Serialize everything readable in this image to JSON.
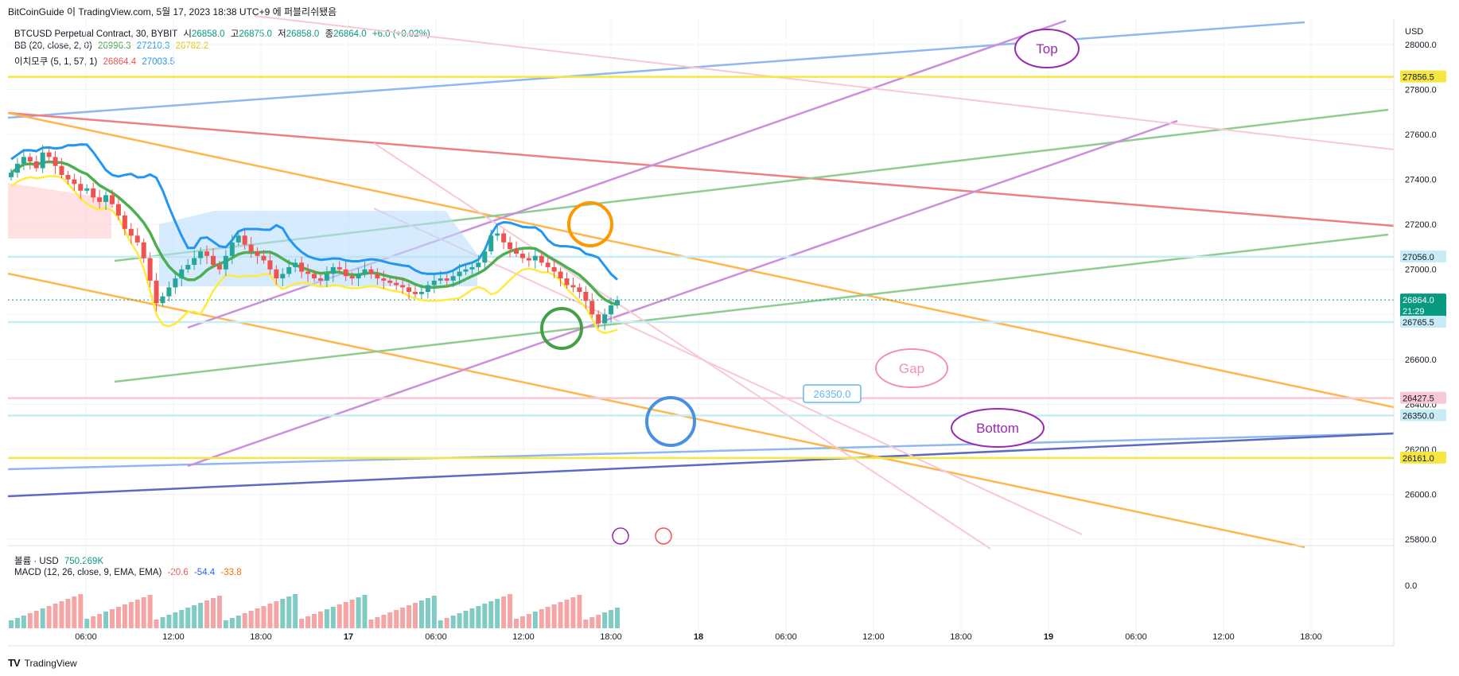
{
  "header": {
    "title": "BitCoinGuide 이 TradingView.com, 5월 17, 2023 18:38 UTC+9 에 퍼블리쉬됐음"
  },
  "legend": {
    "symbol": "BTCUSD Perpetual Contract, 30, BYBIT",
    "open_label": "시",
    "open": "26858.0",
    "high_label": "고",
    "high": "26875.0",
    "low_label": "저",
    "low": "26858.0",
    "close_label": "종",
    "close": "26864.0",
    "change": "+6.0 (+0.02%)",
    "bb_label": "BB (20, close, 2, 0)",
    "bb_basis": "26996.3",
    "bb_upper": "27210.3",
    "bb_lower": "26782.2",
    "ichimoku_label": "이치모쿠 (5, 1, 57, 1)",
    "ichi_a": "26864.4",
    "ichi_b": "27003.5",
    "volume_label": "볼륨 · USD",
    "volume_value": "750.269K",
    "macd_label": "MACD (12, 26, close, 9, EMA, EMA)",
    "macd_hist": "-20.6",
    "macd_line": "-54.4",
    "macd_signal": "-33.8"
  },
  "axis": {
    "currency": "USD"
  },
  "chart_data": {
    "type": "candlestick",
    "price_ticks": [
      28000,
      27800,
      27600,
      27400,
      27200,
      27000,
      26800,
      26600,
      26400,
      26200,
      26000,
      25800
    ],
    "price_range": [
      25770,
      28040
    ],
    "time_labels": [
      "06:00",
      "12:00",
      "18:00",
      "17",
      "06:00",
      "12:00",
      "18:00",
      "18",
      "06:00",
      "12:00",
      "18:00",
      "19",
      "06:00",
      "12:00",
      "18:00"
    ],
    "price_labels": [
      {
        "text": "27856.5",
        "color": "#f5e642",
        "value": 27856.5
      },
      {
        "text": "27056.0",
        "color": "#c8ecf5",
        "value": 27056.0
      },
      {
        "text": "26864.0",
        "sub": "21:29",
        "color": "#089981",
        "value": 26864.0
      },
      {
        "text": "26765.5",
        "color": "#c8ecf5",
        "value": 26765.5
      },
      {
        "text": "26427.5",
        "color": "#f8c8d4",
        "value": 26427.5
      },
      {
        "text": "26350.0",
        "color": "#c8ecf5",
        "value": 26350.0
      },
      {
        "text": "26161.0",
        "color": "#f5e642",
        "value": 26161.0
      }
    ],
    "horizontal_levels": [
      {
        "value": 27856.5,
        "color": "#f5e642"
      },
      {
        "value": 27056.0,
        "color": "#c8ecf5"
      },
      {
        "value": 26765.5,
        "color": "#c8ecf5"
      },
      {
        "value": 26427.5,
        "color": "#f8c8d4"
      },
      {
        "value": 26350.0,
        "color": "#c8ecf5"
      },
      {
        "value": 26161.0,
        "color": "#f5e642"
      }
    ],
    "macd_tick": "0.0",
    "closes": [
      27430,
      27470,
      27500,
      27480,
      27450,
      27520,
      27500,
      27460,
      27420,
      27400,
      27380,
      27350,
      27360,
      27320,
      27300,
      27330,
      27290,
      27240,
      27180,
      27150,
      27120,
      27050,
      26950,
      26850,
      26880,
      26920,
      26960,
      27000,
      27020,
      27050,
      27080,
      27060,
      27020,
      27000,
      27060,
      27120,
      27150,
      27110,
      27080,
      27060,
      27040,
      27000,
      26960,
      26980,
      27010,
      27030,
      26990,
      26980,
      26960,
      26950,
      26980,
      27010,
      27000,
      26970,
      26960,
      26980,
      27000,
      26980,
      26960,
      26950,
      26940,
      26930,
      26920,
      26900,
      26890,
      26900,
      26930,
      26950,
      26960,
      26950,
      26970,
      26990,
      27000,
      27010,
      27030,
      27080,
      27150,
      27160,
      27120,
      27090,
      27070,
      27050,
      27040,
      27060,
      27030,
      27010,
      26990,
      26960,
      26930,
      26920,
      26900,
      26860,
      26800,
      26760,
      26800,
      26840,
      26864
    ],
    "annotations": {
      "top": "Top",
      "gap": "Gap",
      "bottom": "Bottom",
      "price_box": "26350.0"
    },
    "colors": {
      "up": "#26a69a",
      "down": "#ef5350",
      "bb_basis": "#4caf50",
      "bb_upper": "#2196f3",
      "bb_lower": "#ffeb3b"
    }
  },
  "footer": {
    "brand": "TradingView"
  }
}
